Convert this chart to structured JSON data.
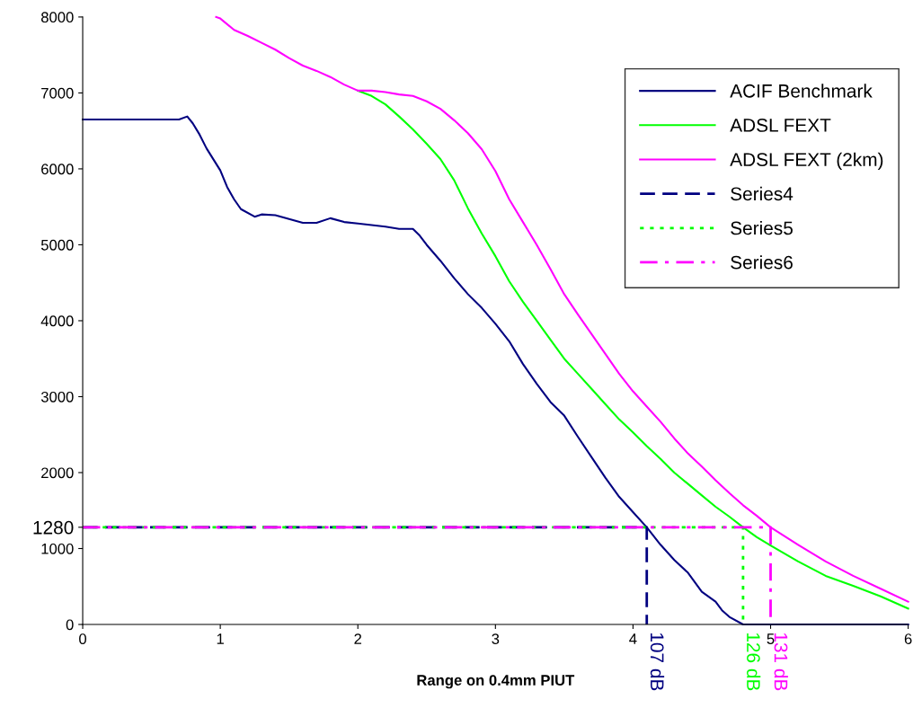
{
  "chart_data": {
    "type": "line",
    "xlabel": "Range on 0.4mm PIUT",
    "xlim": [
      0,
      6
    ],
    "xticks": [
      0,
      1,
      2,
      3,
      4,
      5,
      6
    ],
    "ylim": [
      0,
      8000
    ],
    "yticks": [
      0,
      1000,
      2000,
      3000,
      4000,
      5000,
      6000,
      7000,
      8000,
      1280
    ],
    "grid": false,
    "legend": "top right",
    "marker": "none",
    "series": [
      {
        "name": "ACIF Benchmark",
        "color": "#000080",
        "line_style": "solid",
        "x": [
          0,
          0.7,
          0.76,
          0.8,
          0.85,
          0.9,
          1.0,
          1.05,
          1.1,
          1.15,
          1.25,
          1.3,
          1.4,
          1.5,
          1.6,
          1.7,
          1.8,
          1.9,
          2.0,
          2.2,
          2.3,
          2.4,
          2.45,
          2.5,
          2.6,
          2.7,
          2.8,
          2.9,
          3.0,
          3.1,
          3.2,
          3.3,
          3.4,
          3.5,
          3.6,
          3.7,
          3.8,
          3.9,
          4.0,
          4.1,
          4.2,
          4.3,
          4.4,
          4.5,
          4.6,
          4.65,
          4.7,
          4.8,
          6.0
        ],
        "values": [
          6650,
          6650,
          6690,
          6600,
          6450,
          6270,
          5980,
          5760,
          5600,
          5470,
          5370,
          5400,
          5390,
          5340,
          5290,
          5290,
          5350,
          5300,
          5280,
          5240,
          5210,
          5210,
          5120,
          5000,
          4790,
          4560,
          4350,
          4170,
          3960,
          3730,
          3430,
          3170,
          2930,
          2750,
          2470,
          2200,
          1930,
          1680,
          1480,
          1280,
          1050,
          850,
          680,
          430,
          300,
          180,
          100,
          0,
          0
        ]
      },
      {
        "name": "ADSL FEXT",
        "color": "#00ff00",
        "line_style": "solid",
        "x": [
          2.0,
          2.1,
          2.2,
          2.3,
          2.4,
          2.5,
          2.6,
          2.7,
          2.8,
          2.9,
          3.0,
          3.1,
          3.2,
          3.3,
          3.4,
          3.5,
          3.6,
          3.7,
          3.8,
          3.9,
          4.0,
          4.1,
          4.2,
          4.3,
          4.4,
          4.5,
          4.6,
          4.7,
          4.8,
          4.9,
          5.0,
          5.2,
          5.4,
          5.6,
          5.8,
          6.0
        ],
        "values": [
          7030,
          6960,
          6850,
          6690,
          6520,
          6330,
          6130,
          5850,
          5480,
          5150,
          4850,
          4520,
          4250,
          4000,
          3750,
          3500,
          3300,
          3100,
          2900,
          2700,
          2530,
          2350,
          2180,
          2000,
          1850,
          1700,
          1550,
          1420,
          1280,
          1150,
          1040,
          830,
          640,
          510,
          370,
          210
        ]
      },
      {
        "name": "ADSL FEXT (2km)",
        "color": "#ff00ff",
        "line_style": "solid",
        "x": [
          0.97,
          1.0,
          1.1,
          1.2,
          1.3,
          1.4,
          1.5,
          1.6,
          1.7,
          1.8,
          1.9,
          2.0,
          2.1,
          2.2,
          2.3,
          2.4,
          2.5,
          2.6,
          2.7,
          2.8,
          2.9,
          3.0,
          3.1,
          3.2,
          3.3,
          3.4,
          3.5,
          3.6,
          3.7,
          3.8,
          3.9,
          4.0,
          4.1,
          4.2,
          4.3,
          4.4,
          4.5,
          4.6,
          4.7,
          4.8,
          4.9,
          5.0,
          5.2,
          5.4,
          5.6,
          5.8,
          6.0
        ],
        "values": [
          8000,
          7980,
          7830,
          7750,
          7660,
          7570,
          7460,
          7360,
          7290,
          7210,
          7110,
          7030,
          7030,
          7010,
          6980,
          6960,
          6890,
          6790,
          6640,
          6470,
          6260,
          5970,
          5600,
          5300,
          5000,
          4680,
          4350,
          4080,
          3820,
          3560,
          3300,
          3070,
          2870,
          2670,
          2450,
          2250,
          2080,
          1900,
          1730,
          1570,
          1430,
          1280,
          1050,
          830,
          640,
          470,
          300
        ]
      },
      {
        "name": "Series4",
        "color": "#000080",
        "line_style": "dashed",
        "x": [
          0,
          4.1,
          4.1
        ],
        "values": [
          1280,
          1280,
          0
        ]
      },
      {
        "name": "Series5",
        "color": "#00ff00",
        "line_style": "dotted",
        "x": [
          0,
          4.8,
          4.8
        ],
        "values": [
          1280,
          1280,
          0
        ]
      },
      {
        "name": "Series6",
        "color": "#ff00ff",
        "line_style": "dashdot",
        "x": [
          0,
          5.0,
          5.0
        ],
        "values": [
          1280,
          1280,
          0
        ]
      }
    ],
    "annotations": [
      {
        "text": "107 dB",
        "x": 4.1,
        "y": 0
      },
      {
        "text": "126 dB",
        "x": 4.8,
        "y": 0
      },
      {
        "text": "131 dB",
        "x": 5.0,
        "y": 0
      }
    ]
  }
}
